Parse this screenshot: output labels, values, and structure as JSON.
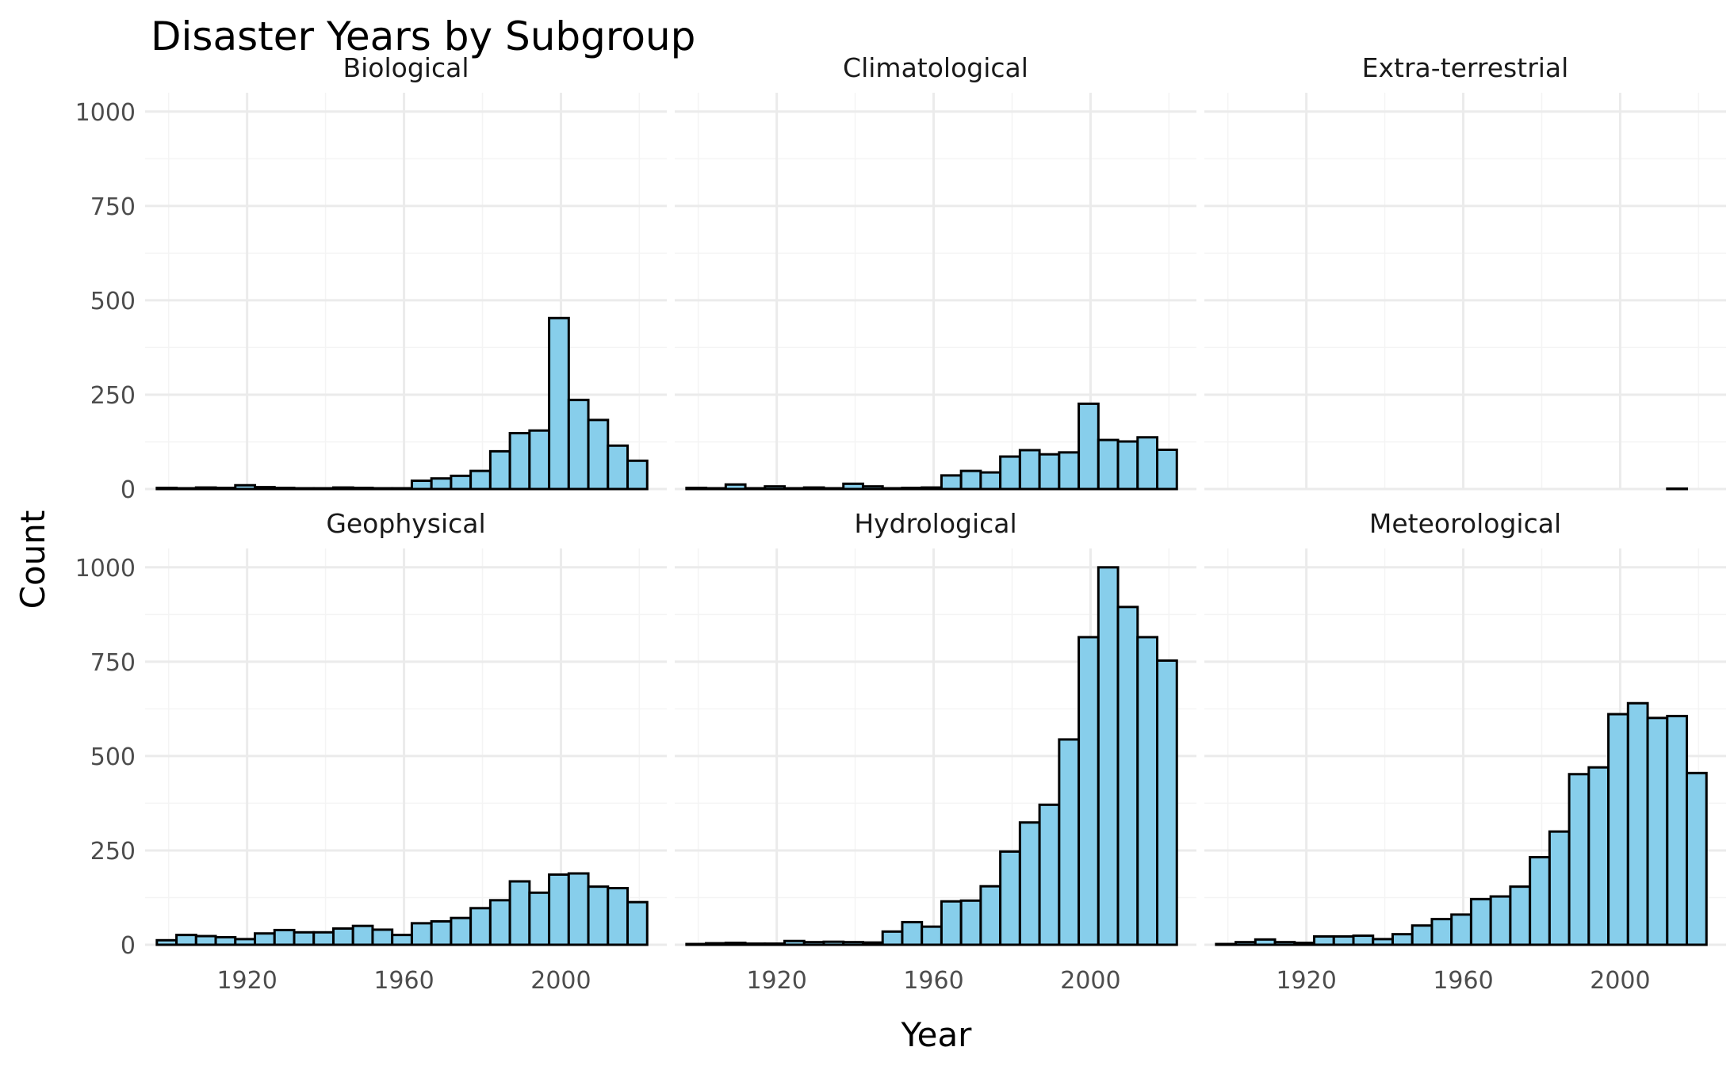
{
  "chart_data": {
    "type": "bar",
    "title": "Disaster Years by Subgroup",
    "xlabel": "Year",
    "ylabel": "Count",
    "xlim": [
      1894,
      2027
    ],
    "ylim": [
      0,
      1050
    ],
    "x_ticks": [
      "1920",
      "1960",
      "2000"
    ],
    "y_ticks": [
      "0",
      "250",
      "500",
      "750",
      "1000"
    ],
    "grid": true,
    "bin_width": 5,
    "bin_starts": [
      1897,
      1902,
      1907,
      1912,
      1917,
      1922,
      1927,
      1932,
      1937,
      1942,
      1947,
      1952,
      1957,
      1962,
      1967,
      1972,
      1977,
      1982,
      1987,
      1992,
      1997,
      2002,
      2007,
      2012,
      2017
    ],
    "facets": [
      {
        "name": "Biological",
        "values": [
          3,
          2,
          4,
          3,
          10,
          5,
          3,
          2,
          2,
          4,
          3,
          2,
          2,
          22,
          28,
          35,
          48,
          100,
          148,
          155,
          453,
          236,
          183,
          115,
          75
        ]
      },
      {
        "name": "Climatological",
        "values": [
          3,
          2,
          12,
          2,
          7,
          2,
          4,
          2,
          14,
          7,
          2,
          3,
          4,
          36,
          48,
          44,
          86,
          103,
          92,
          97,
          226,
          130,
          126,
          137,
          104
        ]
      },
      {
        "name": "Extra-terrestrial",
        "values": [
          0,
          0,
          0,
          0,
          0,
          0,
          0,
          0,
          0,
          0,
          0,
          0,
          0,
          0,
          0,
          0,
          0,
          0,
          0,
          0,
          0,
          0,
          0,
          1,
          0
        ]
      },
      {
        "name": "Geophysical",
        "values": [
          12,
          26,
          23,
          20,
          15,
          30,
          39,
          33,
          33,
          43,
          50,
          40,
          26,
          57,
          62,
          71,
          97,
          118,
          168,
          138,
          186,
          189,
          154,
          150,
          113
        ]
      },
      {
        "name": "Hydrological",
        "values": [
          2,
          4,
          5,
          3,
          3,
          10,
          7,
          8,
          7,
          6,
          35,
          60,
          48,
          115,
          117,
          155,
          247,
          324,
          371,
          544,
          815,
          1000,
          895,
          815,
          753
        ]
      },
      {
        "name": "Meteorological",
        "values": [
          2,
          7,
          14,
          7,
          5,
          22,
          22,
          24,
          15,
          28,
          51,
          68,
          80,
          121,
          128,
          154,
          232,
          300,
          452,
          470,
          611,
          640,
          601,
          606,
          455
        ]
      }
    ]
  }
}
